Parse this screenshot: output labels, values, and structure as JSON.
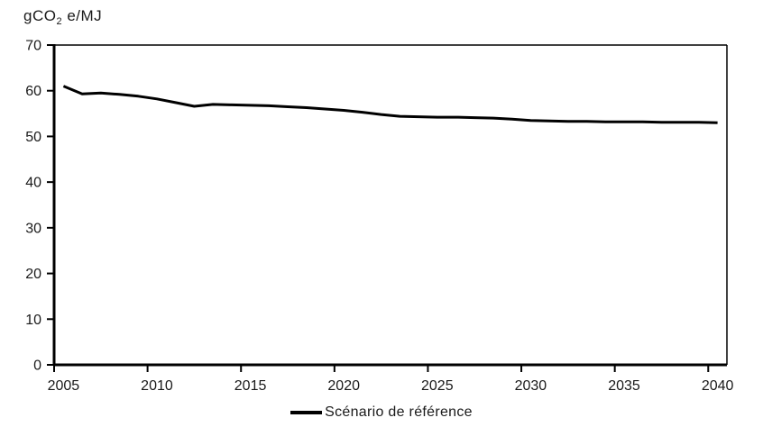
{
  "chart_data": {
    "type": "line",
    "title": "",
    "ylabel": "gCO2 e/MJ",
    "ylabel_parts": {
      "prefix": "gCO",
      "sub": "2",
      "suffix": " e/MJ"
    },
    "x": [
      2005,
      2006,
      2007,
      2008,
      2009,
      2010,
      2011,
      2012,
      2013,
      2014,
      2015,
      2016,
      2017,
      2018,
      2019,
      2020,
      2021,
      2022,
      2023,
      2024,
      2025,
      2026,
      2027,
      2028,
      2029,
      2030,
      2031,
      2032,
      2033,
      2034,
      2035,
      2036,
      2037,
      2038,
      2039,
      2040
    ],
    "series": [
      {
        "name": "Scénario de référence",
        "color": "#000000",
        "values": [
          61.0,
          59.3,
          59.5,
          59.2,
          58.8,
          58.2,
          57.4,
          56.6,
          57.0,
          56.9,
          56.8,
          56.7,
          56.5,
          56.3,
          56.0,
          55.7,
          55.3,
          54.8,
          54.4,
          54.3,
          54.2,
          54.2,
          54.1,
          54.0,
          53.8,
          53.5,
          53.4,
          53.3,
          53.3,
          53.2,
          53.2,
          53.2,
          53.1,
          53.1,
          53.1,
          53.0
        ]
      }
    ],
    "ylim": [
      0,
      70
    ],
    "ytick_step": 10,
    "xticks": [
      2005,
      2010,
      2015,
      2020,
      2025,
      2030,
      2035,
      2040
    ],
    "grid": false,
    "legend_position": "bottom"
  },
  "colors": {
    "line": "#000000",
    "axis": "#000000",
    "text": "#1a1a1a",
    "background": "#ffffff"
  }
}
